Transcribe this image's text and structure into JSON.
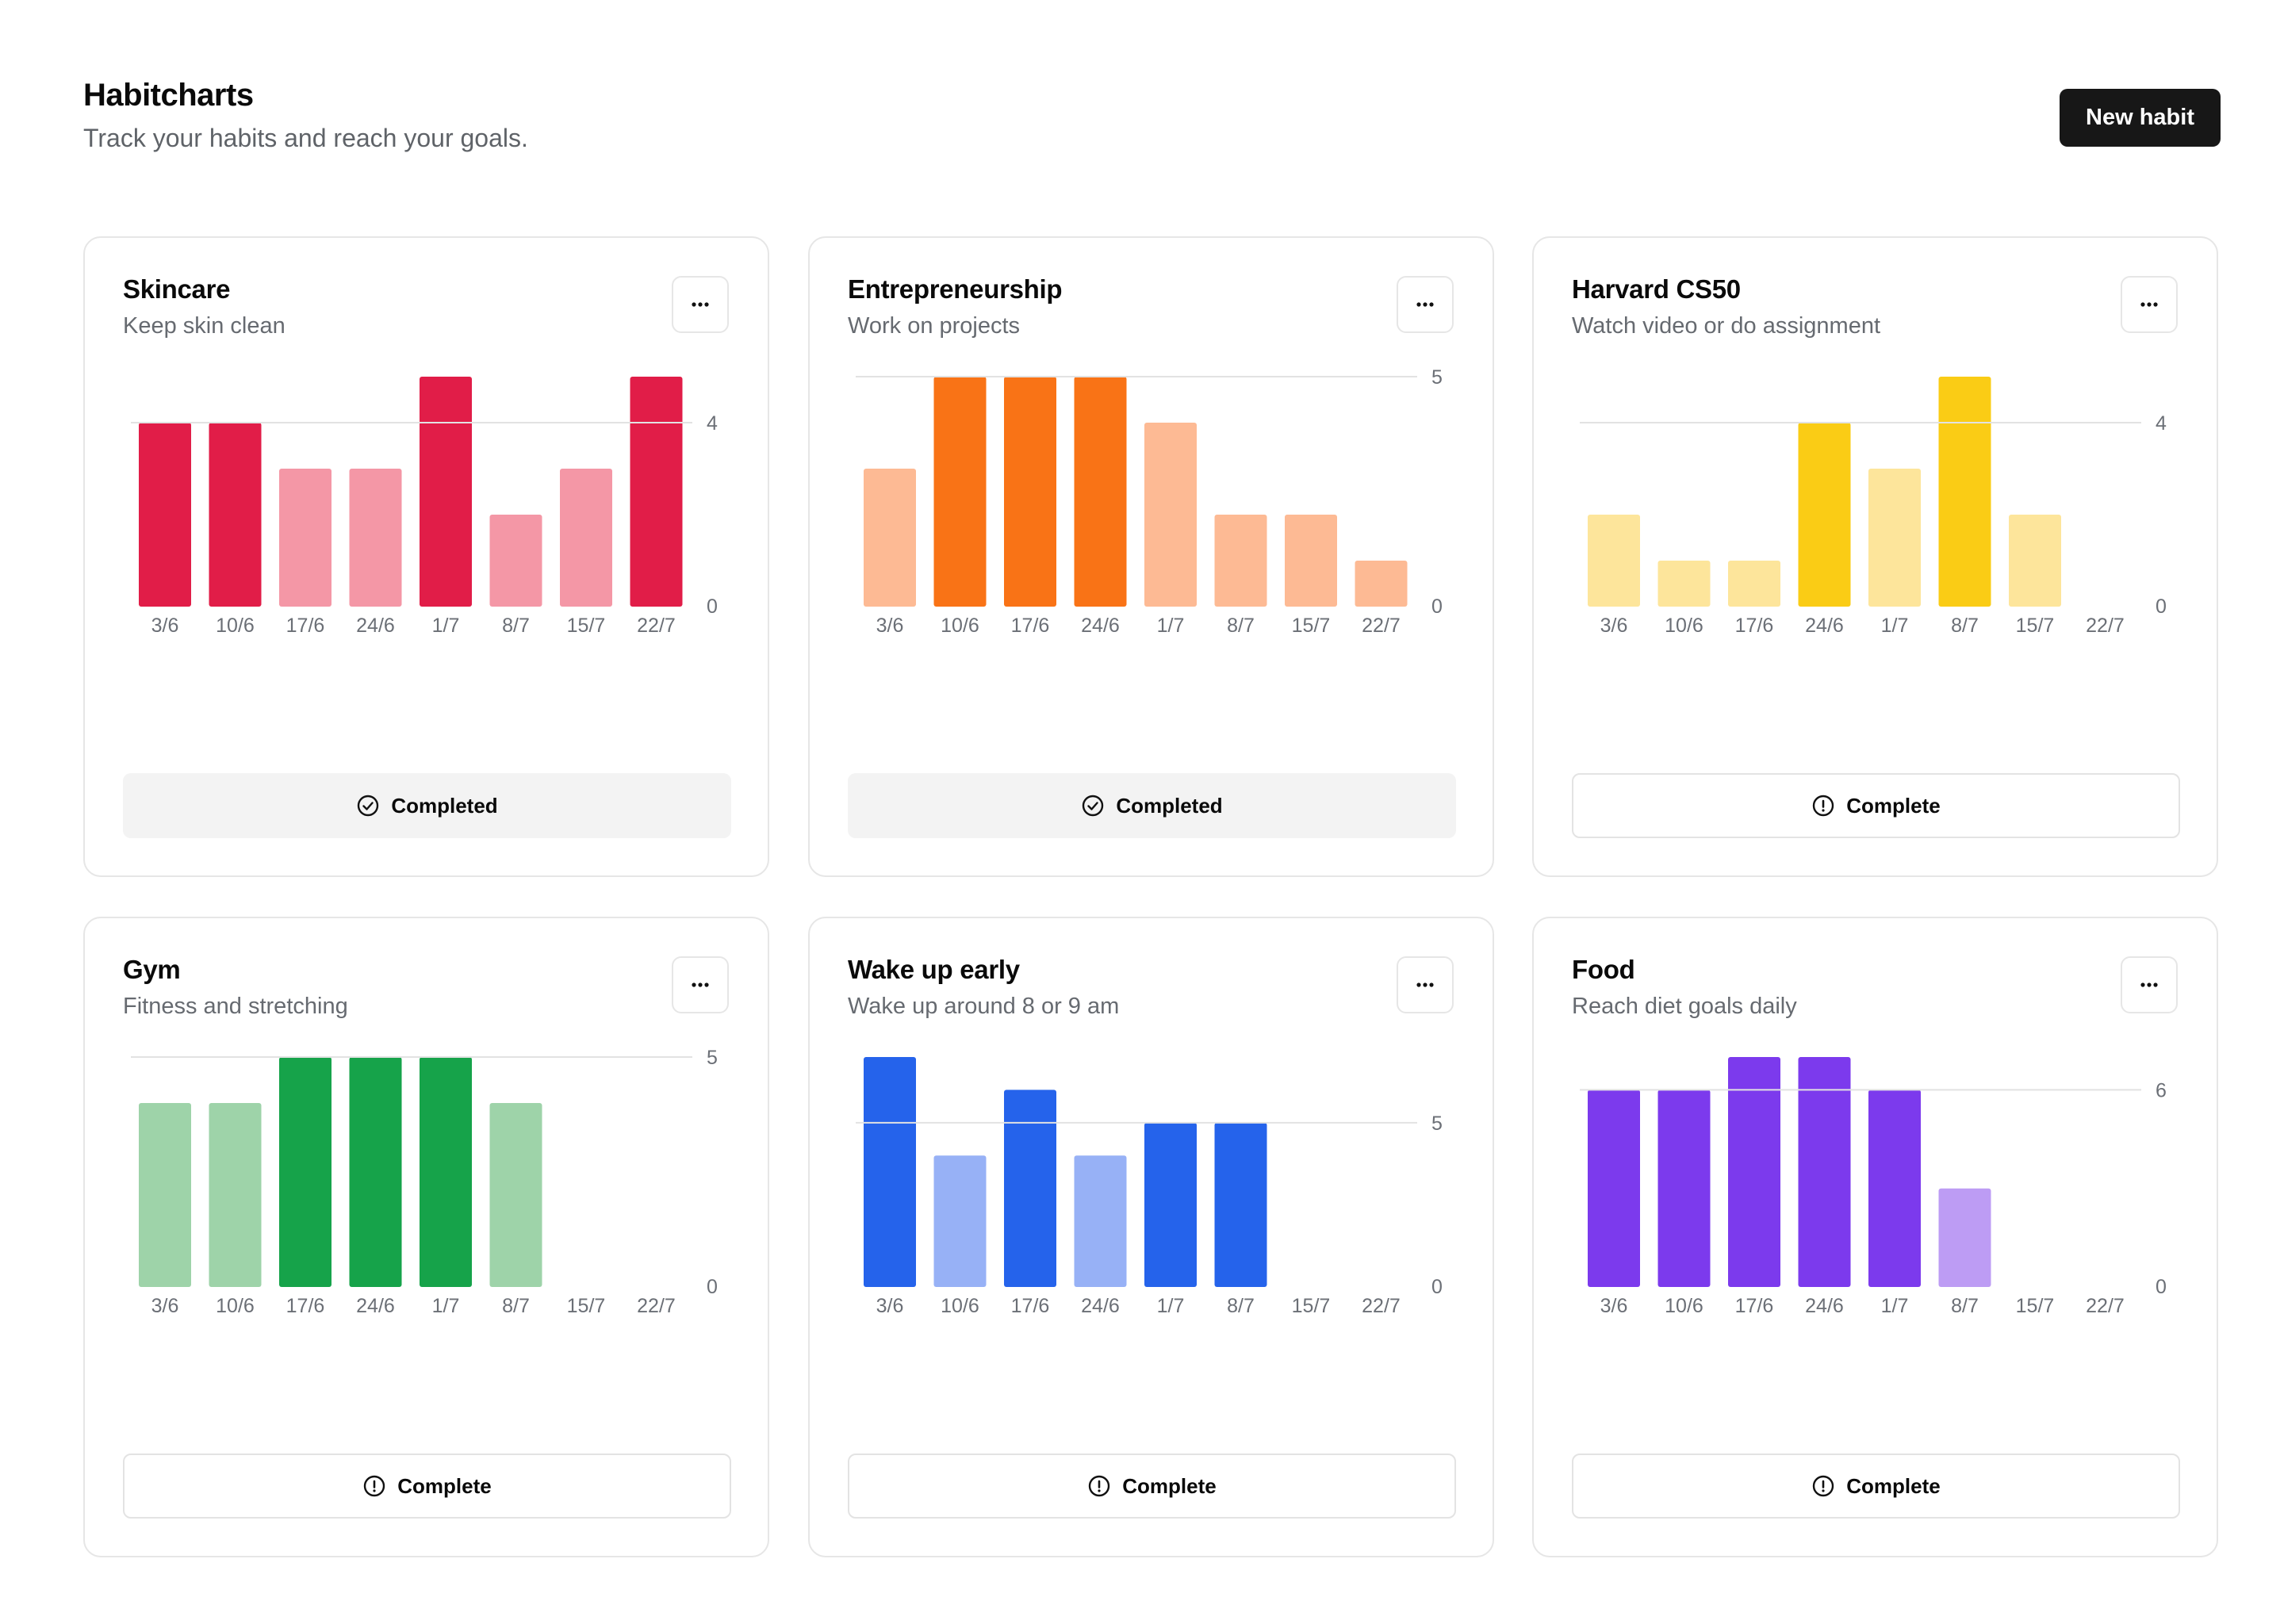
{
  "header": {
    "title": "Habitcharts",
    "subtitle": "Track your habits and reach your goals.",
    "new_button": "New habit"
  },
  "colors": {
    "red": {
      "strong": "#e11d48",
      "light": "#f497a6"
    },
    "orange": {
      "strong": "#f97316",
      "light": "#fdba94"
    },
    "yellow": {
      "strong": "#facc15",
      "light": "#fde59b"
    },
    "green": {
      "strong": "#16a34a",
      "light": "#9ed3a9"
    },
    "blue": {
      "strong": "#2563eb",
      "light": "#97b1f6"
    },
    "purple": {
      "strong": "#7c3aed",
      "light": "#bd9cf4"
    }
  },
  "cards": [
    {
      "title": "Skincare",
      "subtitle": "Keep skin clean",
      "color": "red",
      "status": "Completed",
      "completed": true,
      "icon": "check-circle-icon",
      "menu_icon": "more-horizontal-icon",
      "chart_data": {
        "type": "bar",
        "categories": [
          "3/6",
          "10/6",
          "17/6",
          "24/6",
          "1/7",
          "8/7",
          "15/7",
          "22/7"
        ],
        "values": [
          4,
          4,
          3,
          3,
          5,
          2,
          3,
          5
        ],
        "goal": 4,
        "ylim": [
          0,
          5
        ],
        "y_ticks": [
          0,
          4
        ],
        "strong_when": "value >= goal"
      }
    },
    {
      "title": "Entrepreneurship",
      "subtitle": "Work on projects",
      "color": "orange",
      "status": "Completed",
      "completed": true,
      "icon": "check-circle-icon",
      "menu_icon": "more-horizontal-icon",
      "chart_data": {
        "type": "bar",
        "categories": [
          "3/6",
          "10/6",
          "17/6",
          "24/6",
          "1/7",
          "8/7",
          "15/7",
          "22/7"
        ],
        "values": [
          3,
          5,
          5,
          5,
          4,
          2,
          2,
          1
        ],
        "goal": 5,
        "ylim": [
          0,
          5
        ],
        "y_ticks": [
          0,
          5
        ],
        "strong_when": "value >= goal"
      }
    },
    {
      "title": "Harvard CS50",
      "subtitle": "Watch video or do assignment",
      "color": "yellow",
      "status": "Complete",
      "completed": false,
      "icon": "alert-circle-icon",
      "menu_icon": "more-horizontal-icon",
      "chart_data": {
        "type": "bar",
        "categories": [
          "3/6",
          "10/6",
          "17/6",
          "24/6",
          "1/7",
          "8/7",
          "15/7",
          "22/7"
        ],
        "values": [
          2,
          1,
          1,
          4,
          3,
          5,
          2,
          0
        ],
        "goal": 4,
        "ylim": [
          0,
          5
        ],
        "y_ticks": [
          0,
          4
        ],
        "strong_when": "value >= goal"
      }
    },
    {
      "title": "Gym",
      "subtitle": "Fitness and stretching",
      "color": "green",
      "status": "Complete",
      "completed": false,
      "icon": "alert-circle-icon",
      "menu_icon": "more-horizontal-icon",
      "chart_data": {
        "type": "bar",
        "categories": [
          "3/6",
          "10/6",
          "17/6",
          "24/6",
          "1/7",
          "8/7",
          "15/7",
          "22/7"
        ],
        "values": [
          4,
          4,
          5,
          5,
          5,
          4,
          0,
          0
        ],
        "goal": 5,
        "ylim": [
          0,
          5
        ],
        "y_ticks": [
          0,
          5
        ],
        "strong_when": "value >= goal"
      }
    },
    {
      "title": "Wake up early",
      "subtitle": "Wake up around 8 or 9 am",
      "color": "blue",
      "status": "Complete",
      "completed": false,
      "icon": "alert-circle-icon",
      "menu_icon": "more-horizontal-icon",
      "chart_data": {
        "type": "bar",
        "categories": [
          "3/6",
          "10/6",
          "17/6",
          "24/6",
          "1/7",
          "8/7",
          "15/7",
          "22/7"
        ],
        "values": [
          7,
          4,
          6,
          4,
          5,
          5,
          0,
          0
        ],
        "goal": 5,
        "ylim": [
          0,
          7
        ],
        "y_ticks": [
          0,
          5
        ],
        "strong_when": "value >= goal"
      }
    },
    {
      "title": "Food",
      "subtitle": "Reach diet goals daily",
      "color": "purple",
      "status": "Complete",
      "completed": false,
      "icon": "alert-circle-icon",
      "menu_icon": "more-horizontal-icon",
      "chart_data": {
        "type": "bar",
        "categories": [
          "3/6",
          "10/6",
          "17/6",
          "24/6",
          "1/7",
          "8/7",
          "15/7",
          "22/7"
        ],
        "values": [
          6,
          6,
          7,
          7,
          6,
          3,
          0,
          0
        ],
        "goal": 6,
        "ylim": [
          0,
          7
        ],
        "y_ticks": [
          0,
          6
        ],
        "strong_when": "value >= goal"
      }
    }
  ]
}
